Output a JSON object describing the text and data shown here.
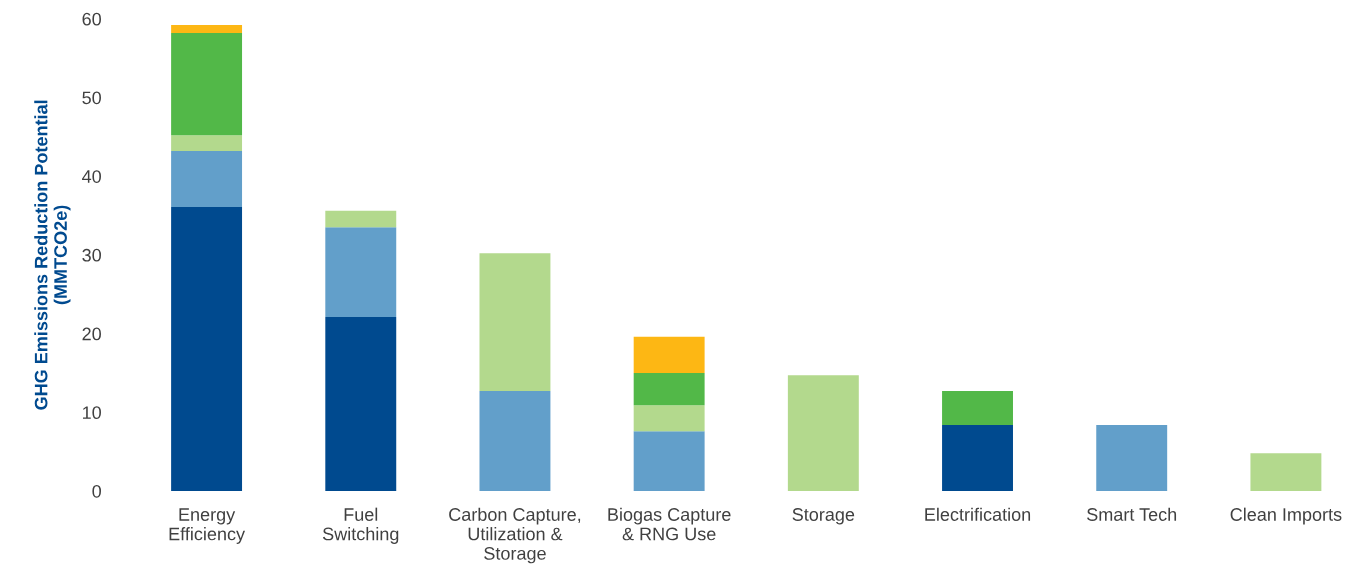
{
  "chart_data": {
    "type": "bar",
    "stacked": true,
    "ylabel": "GHG Emissions Reduction Potential\n(MMTCO2e)",
    "categories": [
      "Energy\nEfficiency",
      "Fuel\nSwitching",
      "Carbon Capture,\nUtilization &\nStorage",
      "Biogas Capture\n& RNG Use",
      "Storage",
      "Electrification",
      "Smart Tech",
      "Clean Imports"
    ],
    "series": [
      {
        "color": "#004a8f",
        "values": [
          36.1,
          22.1,
          null,
          null,
          null,
          8.4,
          null,
          null
        ]
      },
      {
        "color": "#629fca",
        "values": [
          7.1,
          11.4,
          12.7,
          7.6,
          null,
          null,
          8.4,
          null
        ]
      },
      {
        "color": "#b3d98d",
        "values": [
          2.0,
          2.1,
          17.5,
          3.3,
          14.7,
          null,
          null,
          4.8
        ]
      },
      {
        "color": "#52b848",
        "values": [
          13.0,
          null,
          null,
          4.1,
          null,
          4.3,
          null,
          null
        ]
      },
      {
        "color": "#fdb714",
        "values": [
          1.0,
          null,
          null,
          4.6,
          null,
          null,
          null,
          null
        ]
      }
    ],
    "ylim": [
      0,
      60
    ],
    "yticks": [
      0,
      10,
      20,
      30,
      40,
      50,
      60
    ],
    "grid": false,
    "legend": false
  }
}
